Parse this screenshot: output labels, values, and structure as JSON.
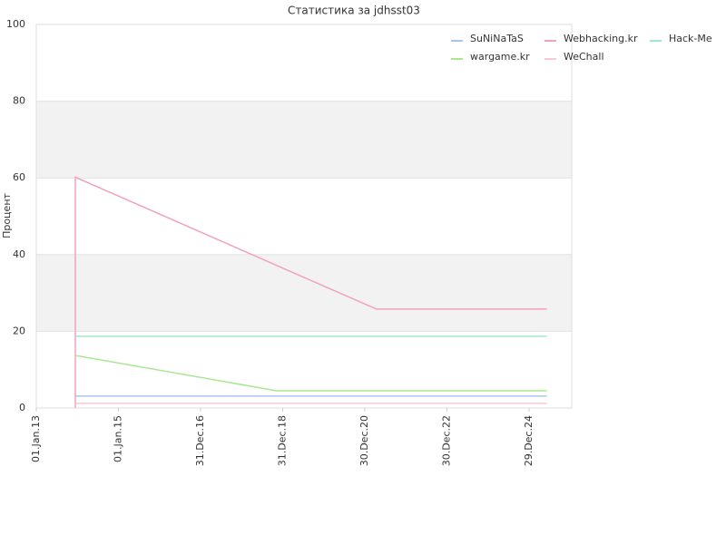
{
  "chart_data": {
    "type": "line",
    "title": "Статистика за jdhsst03",
    "y_label": "Процент",
    "xlim": [
      "2013-01-01",
      "2026-01-12"
    ],
    "xticks": [
      {
        "value": "2013-01-01",
        "label": "01.Jan.13"
      },
      {
        "value": "2015-01-01",
        "label": "01.Jan.15"
      },
      {
        "value": "2016-12-31",
        "label": "31.Dec.16"
      },
      {
        "value": "2018-12-31",
        "label": "31.Dec.18"
      },
      {
        "value": "2020-12-30",
        "label": "30.Dec.20"
      },
      {
        "value": "2022-12-30",
        "label": "30.Dec.22"
      },
      {
        "value": "2024-12-29",
        "label": "29.Dec.24"
      }
    ],
    "ylim": [
      0,
      100
    ],
    "yticks": [
      0,
      20,
      40,
      60,
      80,
      100
    ],
    "grid": true,
    "legend": "top-right",
    "series": [
      {
        "name": "SuNiNaTaS",
        "color": "#a8c4f0",
        "x": [
          "2013-12-14",
          "2025-06-05"
        ],
        "values": [
          3.1,
          3.1
        ]
      },
      {
        "name": "Webhacking.kr",
        "color": "#f4a0c0",
        "x": [
          "2013-12-14",
          "2013-12-14",
          "2021-04-12",
          "2025-06-05"
        ],
        "values": [
          0,
          60.2,
          25.8,
          25.8
        ]
      },
      {
        "name": "Hack-Me",
        "color": "#a0e8c8",
        "x": [
          "2013-12-14",
          "2025-06-05"
        ],
        "values": [
          18.7,
          18.7
        ]
      },
      {
        "name": "wargame.kr",
        "color": "#a8e890",
        "x": [
          "2013-12-14",
          "2018-11-07",
          "2025-06-05"
        ],
        "values": [
          13.7,
          4.5,
          4.5
        ]
      },
      {
        "name": "WeChall",
        "color": "#f8c8d8",
        "x": [
          "2013-12-14",
          "2025-06-05"
        ],
        "values": [
          1.2,
          1.2
        ]
      }
    ]
  }
}
